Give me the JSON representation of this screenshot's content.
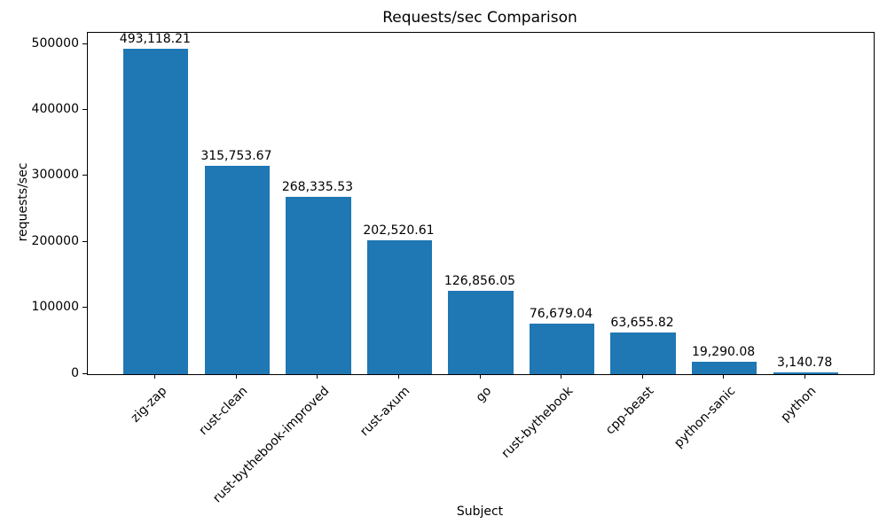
{
  "chart_data": {
    "type": "bar",
    "title": "Requests/sec Comparison",
    "xlabel": "Subject",
    "ylabel": "requests/sec",
    "categories": [
      "zig-zap",
      "rust-clean",
      "rust-bythebook-improved",
      "rust-axum",
      "go",
      "rust-bythebook",
      "cpp-beast",
      "python-sanic",
      "python"
    ],
    "values": [
      493118.21,
      315753.67,
      268335.53,
      202520.61,
      126856.05,
      76679.04,
      63655.82,
      19290.08,
      3140.78
    ],
    "value_labels": [
      "493,118.21",
      "315,753.67",
      "268,335.53",
      "202,520.61",
      "126,856.05",
      "76,679.04",
      "63,655.82",
      "19,290.08",
      "3,140.78"
    ],
    "yticks": [
      0,
      100000,
      200000,
      300000,
      400000,
      500000
    ],
    "ytick_labels": [
      "0",
      "100000",
      "200000",
      "300000",
      "400000",
      "500000"
    ],
    "ylim": [
      0,
      517774
    ],
    "bar_color": "#1f77b4",
    "bar_width_fraction": 0.8,
    "grid": false,
    "legend_position": "none"
  }
}
